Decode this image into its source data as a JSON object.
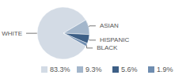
{
  "chart_data": {
    "type": "pie",
    "categories": [
      "WHITE",
      "ASIAN",
      "HISPANIC",
      "BLACK"
    ],
    "values": [
      83.3,
      9.3,
      5.6,
      1.9
    ],
    "value_labels": [
      "83.3%",
      "9.3%",
      "5.6%",
      "1.9%"
    ],
    "colors": [
      "#d3dbe5",
      "#a3b6cb",
      "#3d5f86",
      "#6f8db0"
    ]
  }
}
